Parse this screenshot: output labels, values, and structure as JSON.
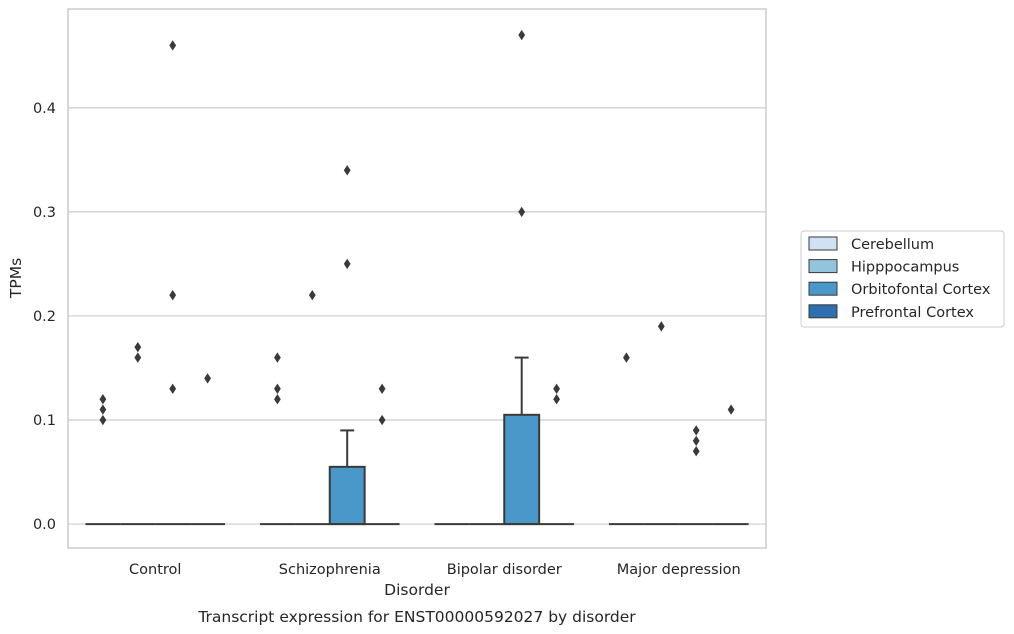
{
  "chart_data": {
    "type": "box",
    "caption": "Transcript expression for ENST00000592027 by disorder",
    "xlabel": "Disorder",
    "ylabel": "TPMs",
    "categories": [
      "Control",
      "Schizophrenia",
      "Bipolar disorder",
      "Major depression"
    ],
    "ylim": [
      -0.023,
      0.495
    ],
    "yticks": [
      0.0,
      0.1,
      0.2,
      0.3,
      0.4
    ],
    "ytick_labels": [
      "0.0",
      "0.1",
      "0.2",
      "0.3",
      "0.4"
    ],
    "grid": "horizontal",
    "legend_position": "right",
    "series": [
      {
        "name": "Cerebellum",
        "color": "#cfe1f2"
      },
      {
        "name": "Hipppocampus",
        "color": "#93c4de"
      },
      {
        "name": "Orbitofontal Cortex",
        "color": "#4a98c9"
      },
      {
        "name": "Prefrontal Cortex",
        "color": "#2d6faf"
      }
    ],
    "boxes": [
      {
        "category": "Control",
        "series": "Cerebellum",
        "q1": 0,
        "median": 0,
        "q3": 0,
        "whisker_low": 0,
        "whisker_high": 0,
        "outliers": [
          0.1,
          0.11,
          0.12
        ]
      },
      {
        "category": "Control",
        "series": "Hipppocampus",
        "q1": 0,
        "median": 0,
        "q3": 0,
        "whisker_low": 0,
        "whisker_high": 0,
        "outliers": [
          0.16,
          0.17
        ]
      },
      {
        "category": "Control",
        "series": "Orbitofontal Cortex",
        "q1": 0,
        "median": 0,
        "q3": 0,
        "whisker_low": 0,
        "whisker_high": 0,
        "outliers": [
          0.13,
          0.22,
          0.46
        ]
      },
      {
        "category": "Control",
        "series": "Prefrontal Cortex",
        "q1": 0,
        "median": 0,
        "q3": 0,
        "whisker_low": 0,
        "whisker_high": 0,
        "outliers": [
          0.14
        ]
      },
      {
        "category": "Schizophrenia",
        "series": "Cerebellum",
        "q1": 0,
        "median": 0,
        "q3": 0,
        "whisker_low": 0,
        "whisker_high": 0,
        "outliers": [
          0.12,
          0.13,
          0.16
        ]
      },
      {
        "category": "Schizophrenia",
        "series": "Hipppocampus",
        "q1": 0,
        "median": 0,
        "q3": 0,
        "whisker_low": 0,
        "whisker_high": 0,
        "outliers": [
          0.22
        ]
      },
      {
        "category": "Schizophrenia",
        "series": "Orbitofontal Cortex",
        "q1": 0,
        "median": 0,
        "q3": 0.055,
        "whisker_low": 0,
        "whisker_high": 0.09,
        "outliers": [
          0.25,
          0.34
        ]
      },
      {
        "category": "Schizophrenia",
        "series": "Prefrontal Cortex",
        "q1": 0,
        "median": 0,
        "q3": 0,
        "whisker_low": 0,
        "whisker_high": 0,
        "outliers": [
          0.1,
          0.13
        ]
      },
      {
        "category": "Bipolar disorder",
        "series": "Cerebellum",
        "q1": 0,
        "median": 0,
        "q3": 0,
        "whisker_low": 0,
        "whisker_high": 0,
        "outliers": []
      },
      {
        "category": "Bipolar disorder",
        "series": "Hipppocampus",
        "q1": 0,
        "median": 0,
        "q3": 0,
        "whisker_low": 0,
        "whisker_high": 0,
        "outliers": []
      },
      {
        "category": "Bipolar disorder",
        "series": "Orbitofontal Cortex",
        "q1": 0,
        "median": 0,
        "q3": 0.105,
        "whisker_low": 0,
        "whisker_high": 0.16,
        "outliers": [
          0.3,
          0.47
        ]
      },
      {
        "category": "Bipolar disorder",
        "series": "Prefrontal Cortex",
        "q1": 0,
        "median": 0,
        "q3": 0,
        "whisker_low": 0,
        "whisker_high": 0,
        "outliers": [
          0.12,
          0.13
        ]
      },
      {
        "category": "Major depression",
        "series": "Cerebellum",
        "q1": 0,
        "median": 0,
        "q3": 0,
        "whisker_low": 0,
        "whisker_high": 0,
        "outliers": [
          0.16
        ]
      },
      {
        "category": "Major depression",
        "series": "Hipppocampus",
        "q1": 0,
        "median": 0,
        "q3": 0,
        "whisker_low": 0,
        "whisker_high": 0,
        "outliers": [
          0.19
        ]
      },
      {
        "category": "Major depression",
        "series": "Orbitofontal Cortex",
        "q1": 0,
        "median": 0,
        "q3": 0,
        "whisker_low": 0,
        "whisker_high": 0,
        "outliers": [
          0.07,
          0.08,
          0.09
        ]
      },
      {
        "category": "Major depression",
        "series": "Prefrontal Cortex",
        "q1": 0,
        "median": 0,
        "q3": 0,
        "whisker_low": 0,
        "whisker_high": 0,
        "outliers": [
          0.11
        ]
      }
    ]
  }
}
